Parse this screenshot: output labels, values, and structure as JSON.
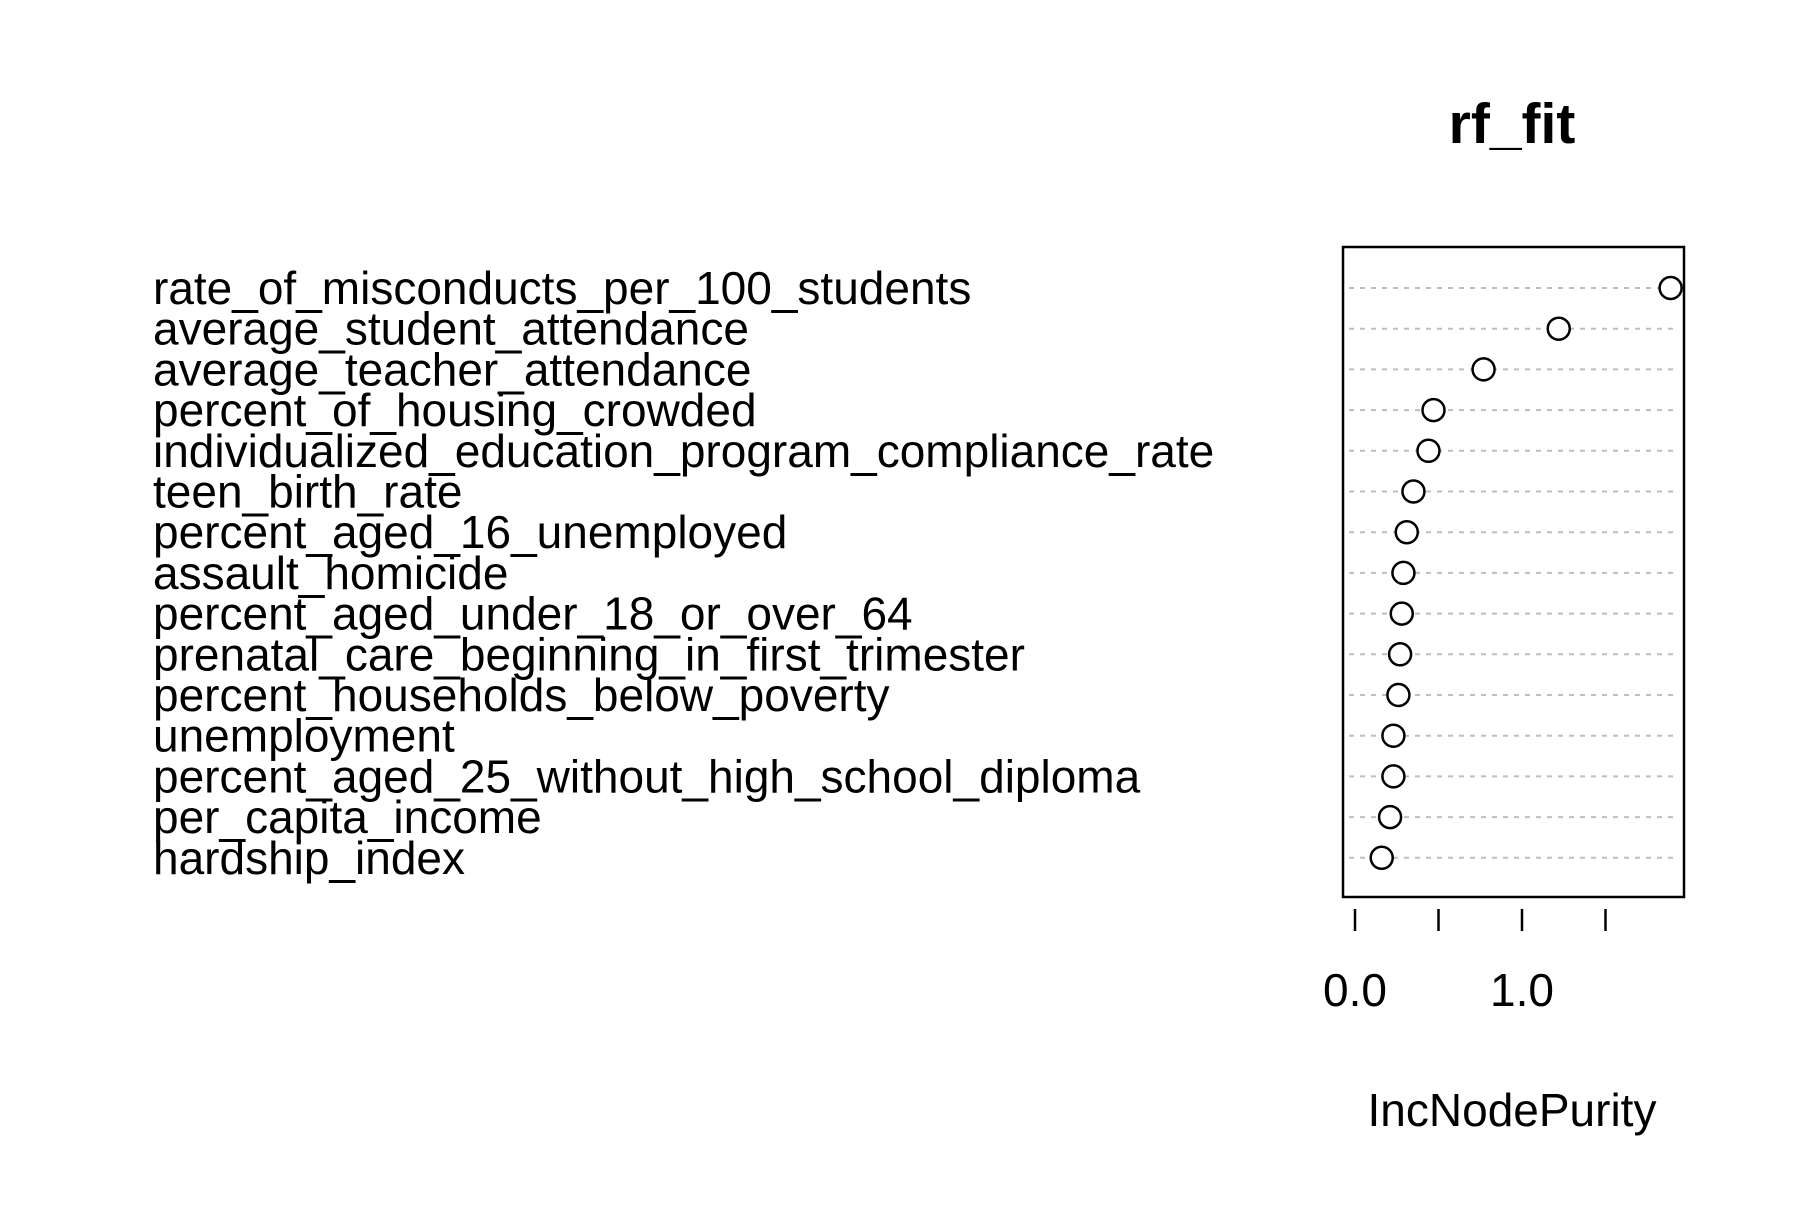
{
  "chart_data": {
    "type": "scatter",
    "title": "rf_fit",
    "xlabel": "IncNodePurity",
    "ylabel": "",
    "xlim": [
      0.0,
      1.95
    ],
    "xticks": [
      0.0,
      0.5,
      1.0,
      1.5
    ],
    "xtick_labels": [
      "0.0",
      "",
      "1.0",
      ""
    ],
    "grid": "horizontal dotted gridline per variable",
    "legend": "none",
    "categories": [
      "rate_of_misconducts_per_100_students",
      "average_student_attendance",
      "average_teacher_attendance",
      "percent_of_housing_crowded",
      "individualized_education_program_compliance_rate",
      "teen_birth_rate",
      "percent_aged_16_unemployed",
      "assault_homicide",
      "percent_aged_under_18_or_over_64",
      "prenatal_care_beginning_in_first_trimester",
      "percent_households_below_poverty",
      "unemployment",
      "percent_aged_25_without_high_school_diploma",
      "per_capita_income",
      "hardship_index"
    ],
    "values": [
      1.89,
      1.22,
      0.77,
      0.47,
      0.44,
      0.35,
      0.31,
      0.29,
      0.28,
      0.27,
      0.26,
      0.23,
      0.23,
      0.21,
      0.16
    ]
  },
  "colors": {
    "ink": "#000000",
    "grid": "#bebebe",
    "background": "#ffffff"
  }
}
